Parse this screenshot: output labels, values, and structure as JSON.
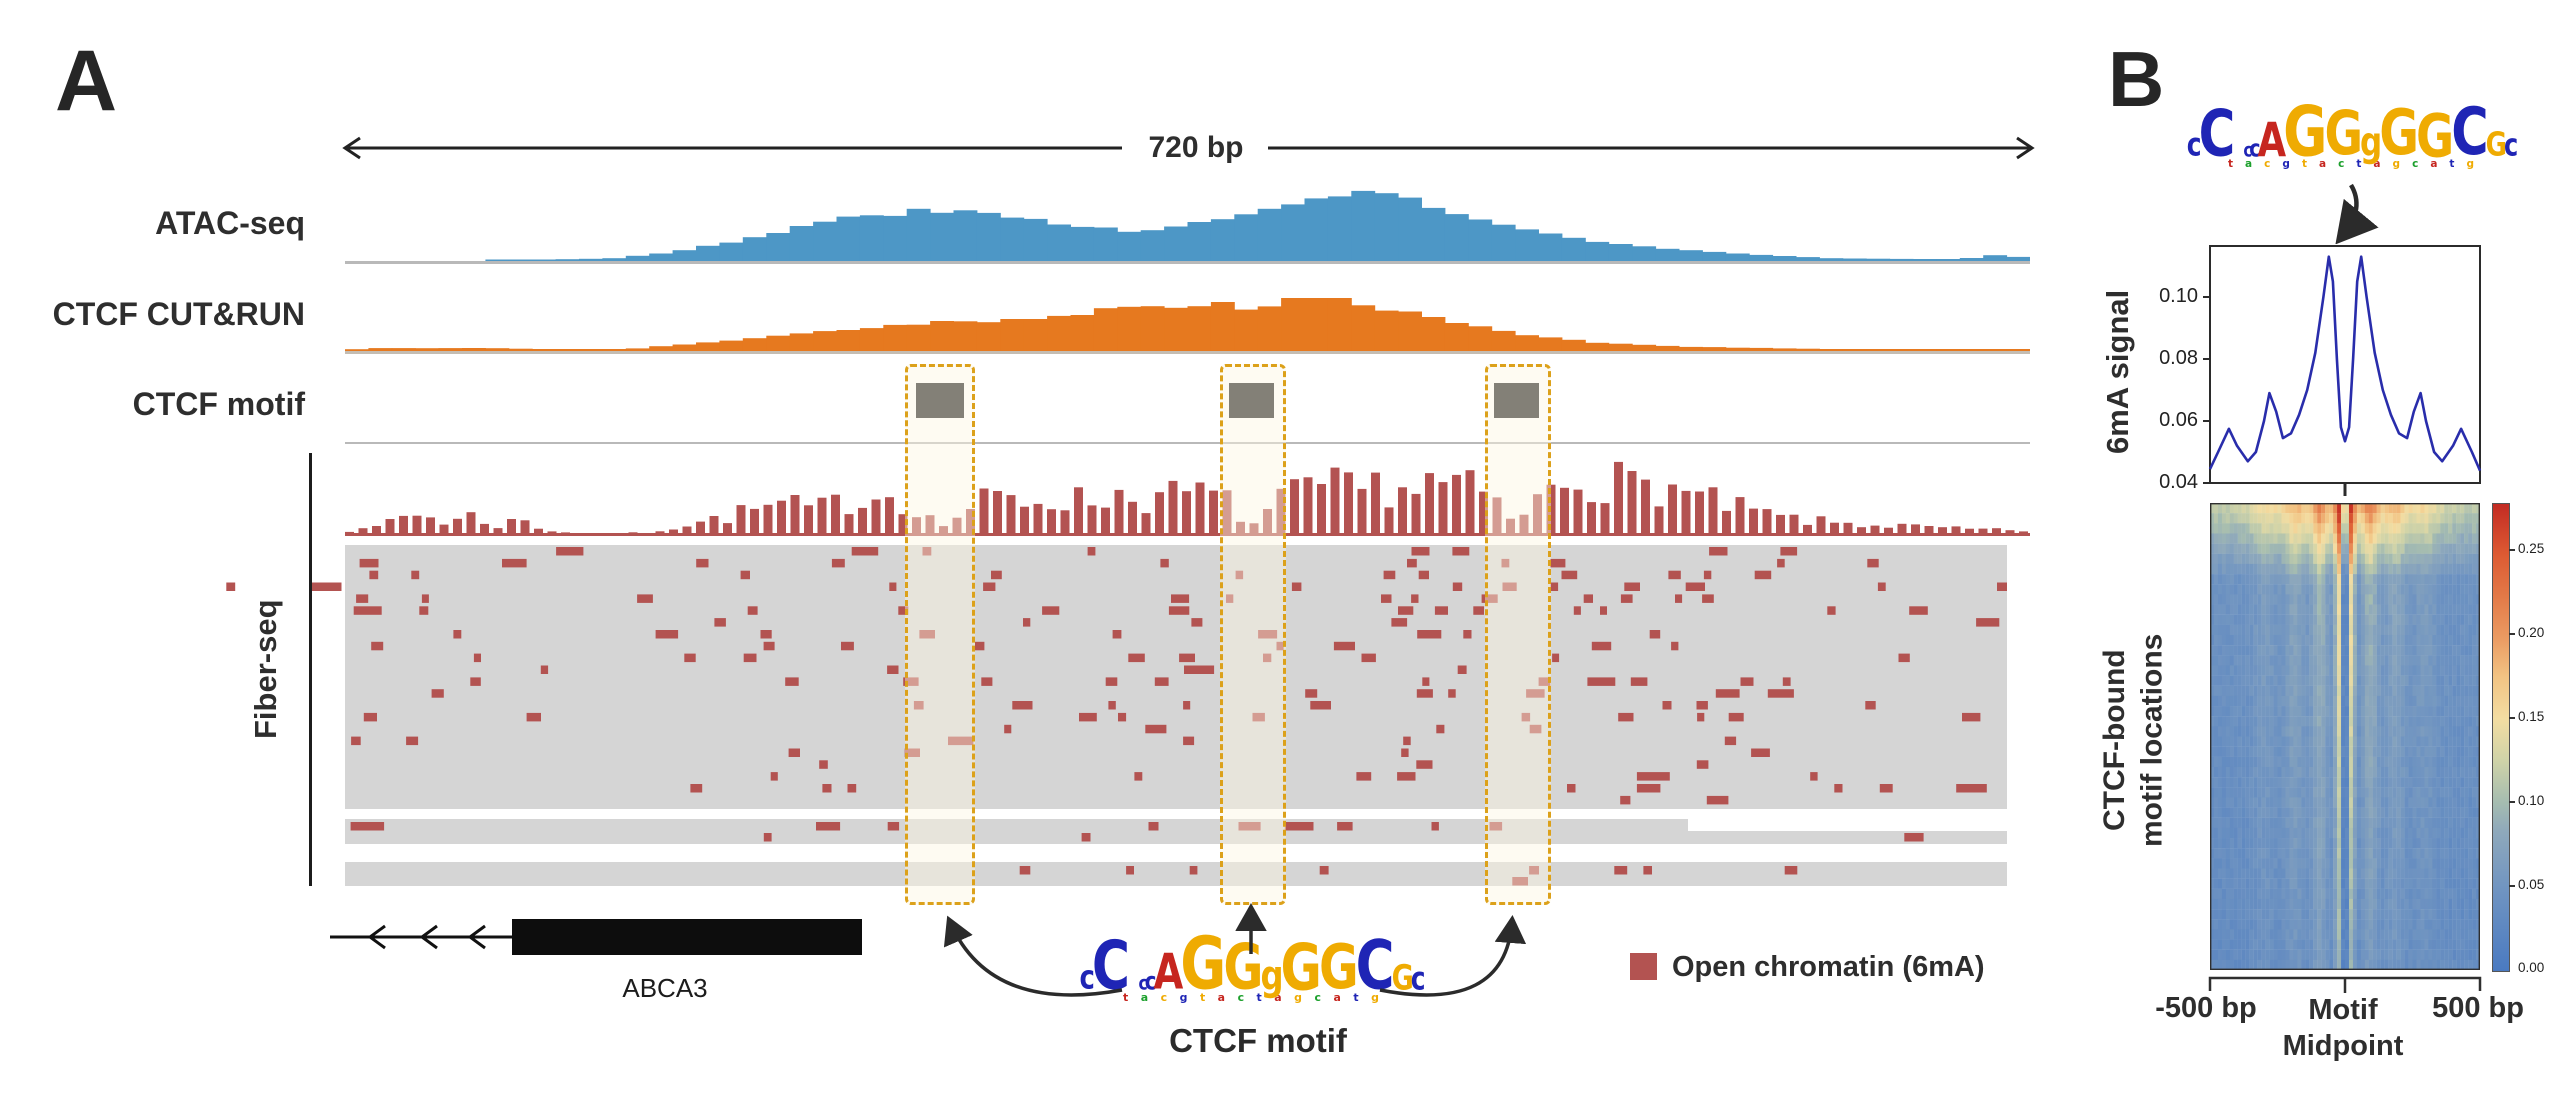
{
  "figure": {
    "panel_a_label": "A",
    "panel_b_label": "B",
    "scale_label": "720 bp",
    "tracks": {
      "atac": "ATAC-seq",
      "cutrun": "CTCF CUT&RUN",
      "motif": "CTCF motif",
      "fiber": "Fiber-seq"
    },
    "gene_label": "ABCA3",
    "legend": {
      "label": "Open chromatin (6mA)",
      "color": "#b35351"
    },
    "motif_caption": "CTCF motif",
    "panel_b": {
      "ylabel": "6mA signal",
      "yticks": [
        "0.10",
        "0.08",
        "0.06",
        "0.04"
      ],
      "heatmap_label_line1": "CTCF-bound",
      "heatmap_label_line2": "motif locations",
      "xtick_left": "-500 bp",
      "xtick_mid_line1": "Motif",
      "xtick_mid_line2": "Midpoint",
      "xtick_right": "500 bp",
      "colorbar_ticks": [
        "0.25",
        "0.20",
        "0.15",
        "0.10",
        "0.05",
        "0.00"
      ]
    }
  },
  "logo": {
    "letters": [
      {
        "ch": "c",
        "size": 0.5,
        "color": "#1f25b5"
      },
      {
        "ch": "C",
        "size": 1.0,
        "color": "#1f25b5"
      },
      {
        "ch": "c",
        "size": 0.3,
        "color": "#1f25b5"
      },
      {
        "ch": "c",
        "size": 0.38,
        "color": "#1f25b5"
      },
      {
        "ch": "A",
        "size": 0.74,
        "color": "#c6261f"
      },
      {
        "ch": "G",
        "size": 1.08,
        "color": "#efab02"
      },
      {
        "ch": "G",
        "size": 0.94,
        "color": "#efab02"
      },
      {
        "ch": "g",
        "size": 0.62,
        "color": "#efab02"
      },
      {
        "ch": "G",
        "size": 0.97,
        "color": "#efab02"
      },
      {
        "ch": "G",
        "size": 0.93,
        "color": "#efab02"
      },
      {
        "ch": "C",
        "size": 1.02,
        "color": "#1f25b5"
      },
      {
        "ch": "G",
        "size": 0.52,
        "color": "#efab02"
      },
      {
        "ch": "c",
        "size": 0.48,
        "color": "#1f25b5"
      }
    ],
    "fringe": [
      [
        "t",
        "#c6261f"
      ],
      [
        "a",
        "#1ca02c"
      ],
      [
        "c",
        "#efab02"
      ],
      [
        "g",
        "#1f25b5"
      ],
      [
        "t",
        "#efab02"
      ],
      [
        "a",
        "#c6261f"
      ],
      [
        "c",
        "#1ca02c"
      ],
      [
        "t",
        "#1f25b5"
      ],
      [
        "a",
        "#c6261f"
      ],
      [
        "g",
        "#efab02"
      ],
      [
        "c",
        "#1ca02c"
      ],
      [
        "a",
        "#c6261f"
      ],
      [
        "t",
        "#1f25b5"
      ],
      [
        "g",
        "#efab02"
      ]
    ]
  },
  "chart_data": [
    {
      "id": "atac",
      "type": "area",
      "title": "ATAC-seq coverage",
      "color": "#4d97c6",
      "x_span_bp": 720,
      "profile": [
        [
          0,
          0
        ],
        [
          0.08,
          0
        ],
        [
          0.1,
          1
        ],
        [
          0.14,
          2
        ],
        [
          0.16,
          3
        ],
        [
          0.18,
          6
        ],
        [
          0.2,
          10
        ],
        [
          0.22,
          16
        ],
        [
          0.24,
          22
        ],
        [
          0.26,
          30
        ],
        [
          0.28,
          38
        ],
        [
          0.3,
          43
        ],
        [
          0.32,
          47
        ],
        [
          0.34,
          50
        ],
        [
          0.36,
          49
        ],
        [
          0.38,
          47
        ],
        [
          0.4,
          43
        ],
        [
          0.42,
          39
        ],
        [
          0.44,
          34
        ],
        [
          0.465,
          31
        ],
        [
          0.49,
          34
        ],
        [
          0.51,
          38
        ],
        [
          0.53,
          44
        ],
        [
          0.55,
          51
        ],
        [
          0.57,
          59
        ],
        [
          0.585,
          66
        ],
        [
          0.6,
          72
        ],
        [
          0.615,
          69
        ],
        [
          0.63,
          62
        ],
        [
          0.645,
          54
        ],
        [
          0.66,
          47
        ],
        [
          0.68,
          39
        ],
        [
          0.7,
          31
        ],
        [
          0.72,
          25
        ],
        [
          0.74,
          20
        ],
        [
          0.76,
          16
        ],
        [
          0.78,
          13
        ],
        [
          0.8,
          10
        ],
        [
          0.82,
          8
        ],
        [
          0.85,
          5
        ],
        [
          0.88,
          3
        ],
        [
          0.92,
          2
        ],
        [
          0.96,
          2
        ],
        [
          0.98,
          6
        ],
        [
          1,
          3
        ]
      ]
    },
    {
      "id": "cutrun",
      "type": "area",
      "title": "CTCF CUT&RUN coverage",
      "color": "#e6791f",
      "profile": [
        [
          0,
          0
        ],
        [
          0.012,
          3
        ],
        [
          0.05,
          3
        ],
        [
          0.1,
          3
        ],
        [
          0.115,
          0
        ],
        [
          0.15,
          0
        ],
        [
          0.17,
          2
        ],
        [
          0.19,
          5
        ],
        [
          0.22,
          9
        ],
        [
          0.25,
          14
        ],
        [
          0.28,
          18
        ],
        [
          0.31,
          23
        ],
        [
          0.34,
          27
        ],
        [
          0.36,
          30
        ],
        [
          0.38,
          29
        ],
        [
          0.4,
          33
        ],
        [
          0.42,
          35
        ],
        [
          0.44,
          36
        ],
        [
          0.463,
          47
        ],
        [
          0.48,
          43
        ],
        [
          0.5,
          44
        ],
        [
          0.52,
          49
        ],
        [
          0.545,
          40
        ],
        [
          0.565,
          62
        ],
        [
          0.585,
          70
        ],
        [
          0.6,
          45
        ],
        [
          0.615,
          39
        ],
        [
          0.63,
          38
        ],
        [
          0.645,
          35
        ],
        [
          0.66,
          29
        ],
        [
          0.68,
          22
        ],
        [
          0.7,
          17
        ],
        [
          0.72,
          12
        ],
        [
          0.74,
          9
        ],
        [
          0.77,
          6
        ],
        [
          0.8,
          4
        ],
        [
          0.84,
          3
        ],
        [
          0.88,
          2
        ],
        [
          0.93,
          1
        ],
        [
          1,
          1
        ]
      ]
    },
    {
      "id": "fiber_aggregate",
      "type": "bar",
      "color": "#b35351",
      "seed": 7,
      "envelope": [
        [
          0,
          2
        ],
        [
          0.01,
          12
        ],
        [
          0.02,
          6
        ],
        [
          0.03,
          20
        ],
        [
          0.045,
          25
        ],
        [
          0.06,
          14
        ],
        [
          0.075,
          22
        ],
        [
          0.09,
          10
        ],
        [
          0.105,
          18
        ],
        [
          0.12,
          4
        ],
        [
          0.14,
          1
        ],
        [
          0.16,
          1
        ],
        [
          0.18,
          2
        ],
        [
          0.2,
          10
        ],
        [
          0.22,
          18
        ],
        [
          0.24,
          28
        ],
        [
          0.26,
          35
        ],
        [
          0.28,
          30
        ],
        [
          0.3,
          42
        ],
        [
          0.32,
          50
        ],
        [
          0.335,
          40
        ],
        [
          0.353,
          8
        ],
        [
          0.37,
          30
        ],
        [
          0.385,
          45
        ],
        [
          0.4,
          38
        ],
        [
          0.42,
          45
        ],
        [
          0.44,
          40
        ],
        [
          0.46,
          48
        ],
        [
          0.48,
          42
        ],
        [
          0.5,
          50
        ],
        [
          0.52,
          45
        ],
        [
          0.538,
          10
        ],
        [
          0.555,
          40
        ],
        [
          0.57,
          52
        ],
        [
          0.585,
          58
        ],
        [
          0.6,
          50
        ],
        [
          0.615,
          60
        ],
        [
          0.63,
          55
        ],
        [
          0.645,
          62
        ],
        [
          0.66,
          58
        ],
        [
          0.675,
          50
        ],
        [
          0.696,
          12
        ],
        [
          0.71,
          45
        ],
        [
          0.72,
          66
        ],
        [
          0.735,
          72
        ],
        [
          0.75,
          65
        ],
        [
          0.765,
          58
        ],
        [
          0.78,
          60
        ],
        [
          0.8,
          45
        ],
        [
          0.82,
          35
        ],
        [
          0.84,
          25
        ],
        [
          0.86,
          18
        ],
        [
          0.88,
          14
        ],
        [
          0.9,
          12
        ],
        [
          0.92,
          10
        ],
        [
          0.94,
          8
        ],
        [
          0.96,
          6
        ],
        [
          0.98,
          5
        ],
        [
          1,
          4
        ]
      ]
    },
    {
      "id": "fiber_raster",
      "type": "raster",
      "mark_color": "#b35351",
      "bg_color": "#d5d5d5",
      "rows_main": 22,
      "rows_sub1": 2,
      "rows_sub2": 2,
      "seed": 11,
      "density": [
        [
          0,
          0.18
        ],
        [
          0.02,
          0.26
        ],
        [
          0.05,
          0.28
        ],
        [
          0.08,
          0.22
        ],
        [
          0.11,
          0.2
        ],
        [
          0.13,
          0.05
        ],
        [
          0.17,
          0.04
        ],
        [
          0.2,
          0.12
        ],
        [
          0.23,
          0.22
        ],
        [
          0.26,
          0.3
        ],
        [
          0.3,
          0.36
        ],
        [
          0.335,
          0.32
        ],
        [
          0.353,
          0.08
        ],
        [
          0.37,
          0.32
        ],
        [
          0.4,
          0.38
        ],
        [
          0.44,
          0.36
        ],
        [
          0.48,
          0.4
        ],
        [
          0.52,
          0.38
        ],
        [
          0.538,
          0.1
        ],
        [
          0.56,
          0.42
        ],
        [
          0.6,
          0.48
        ],
        [
          0.64,
          0.52
        ],
        [
          0.675,
          0.46
        ],
        [
          0.696,
          0.12
        ],
        [
          0.72,
          0.55
        ],
        [
          0.75,
          0.58
        ],
        [
          0.78,
          0.5
        ],
        [
          0.81,
          0.42
        ],
        [
          0.84,
          0.32
        ],
        [
          0.87,
          0.26
        ],
        [
          0.9,
          0.22
        ],
        [
          0.94,
          0.18
        ],
        [
          1,
          0.15
        ]
      ]
    },
    {
      "id": "sixma_line",
      "type": "line",
      "color": "#292dab",
      "ylabel": "6mA signal",
      "xlim": [
        -500,
        500
      ],
      "ylim": [
        0.04,
        0.1165
      ],
      "points": [
        [
          -500,
          0.0445
        ],
        [
          -470,
          0.05
        ],
        [
          -430,
          0.0575
        ],
        [
          -400,
          0.052
        ],
        [
          -360,
          0.047
        ],
        [
          -330,
          0.05
        ],
        [
          -300,
          0.06
        ],
        [
          -280,
          0.069
        ],
        [
          -255,
          0.063
        ],
        [
          -230,
          0.0545
        ],
        [
          -200,
          0.056
        ],
        [
          -170,
          0.062
        ],
        [
          -140,
          0.07
        ],
        [
          -110,
          0.082
        ],
        [
          -80,
          0.1
        ],
        [
          -60,
          0.113
        ],
        [
          -45,
          0.105
        ],
        [
          -30,
          0.08
        ],
        [
          -15,
          0.058
        ],
        [
          0,
          0.0535
        ],
        [
          15,
          0.058
        ],
        [
          30,
          0.08
        ],
        [
          45,
          0.105
        ],
        [
          60,
          0.113
        ],
        [
          80,
          0.1
        ],
        [
          110,
          0.082
        ],
        [
          140,
          0.07
        ],
        [
          170,
          0.062
        ],
        [
          200,
          0.056
        ],
        [
          230,
          0.0545
        ],
        [
          255,
          0.063
        ],
        [
          280,
          0.069
        ],
        [
          300,
          0.06
        ],
        [
          330,
          0.05
        ],
        [
          360,
          0.047
        ],
        [
          400,
          0.052
        ],
        [
          430,
          0.0575
        ],
        [
          470,
          0.05
        ],
        [
          500,
          0.044
        ]
      ]
    },
    {
      "id": "heatmap",
      "type": "heatmap",
      "title": "CTCF-bound motif locations",
      "xlim": [
        -500,
        500
      ],
      "colorbar_range": [
        0.0,
        0.28
      ],
      "seed": 5,
      "colormap": [
        [
          0,
          "#4a7ac1"
        ],
        [
          0.18,
          "#7195c1"
        ],
        [
          0.3,
          "#8fa9bb"
        ],
        [
          0.36,
          "#a5bcb0"
        ],
        [
          0.45,
          "#cfd3a8"
        ],
        [
          0.54,
          "#f3dda2"
        ],
        [
          0.63,
          "#f2c383"
        ],
        [
          0.71,
          "#eb9c63"
        ],
        [
          0.8,
          "#e37a48"
        ],
        [
          0.89,
          "#dd5b33"
        ],
        [
          1,
          "#c32b23"
        ]
      ]
    }
  ],
  "motif_sites": {
    "count": 3,
    "box_color": "#1f1f1f",
    "highlight_color": "#dca11a"
  }
}
